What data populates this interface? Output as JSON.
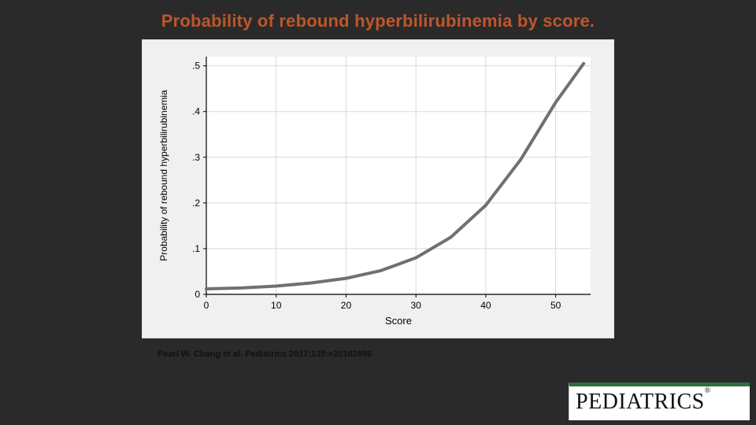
{
  "title": {
    "text": "Probability of rebound hyperbilirubinemia by score.",
    "color": "#c0552a",
    "fontsize": 22
  },
  "citation": {
    "text": "Pearl W. Chang et al. Pediatrics 2017;139:e20162896",
    "color": "#111111",
    "fontsize": 11
  },
  "logo": {
    "text": "PEDIATRICS",
    "registered": "®",
    "accent_color": "#2e6e3c"
  },
  "chart": {
    "type": "line",
    "background_color": "#f0f0f0",
    "plot_background_color": "#ffffff",
    "axis_color": "#000000",
    "grid_color": "#d8d8d8",
    "grid_on": true,
    "line_color": "#707070",
    "line_width": 4,
    "xlabel": "Score",
    "ylabel": "Probability of rebound hyperbilirubinemia",
    "label_fontsize": 13,
    "tick_fontsize": 12,
    "xlim": [
      0,
      55
    ],
    "ylim": [
      0,
      0.52
    ],
    "xticks": [
      0,
      10,
      20,
      30,
      40,
      50
    ],
    "yticks": [
      0,
      0.1,
      0.2,
      0.3,
      0.4,
      0.5
    ],
    "ytick_labels": [
      "0",
      ".1",
      ".2",
      ".3",
      ".4",
      ".5"
    ],
    "series": {
      "x": [
        0,
        5,
        10,
        15,
        20,
        25,
        30,
        35,
        40,
        45,
        50,
        54
      ],
      "y": [
        0.012,
        0.014,
        0.018,
        0.025,
        0.035,
        0.052,
        0.08,
        0.125,
        0.195,
        0.295,
        0.42,
        0.505
      ]
    }
  }
}
